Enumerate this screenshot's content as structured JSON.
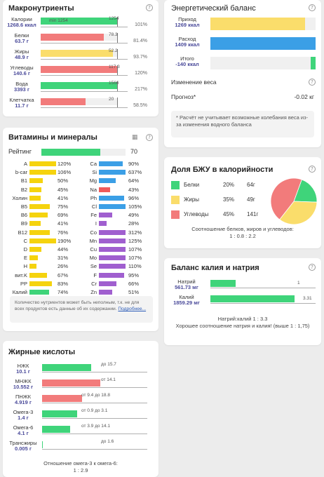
{
  "macro": {
    "title": "Макронутриенты",
    "rows": [
      {
        "name": "Калории",
        "value": "1268.6 ккал",
        "fill": 1.0,
        "color": "#3fd47a",
        "min": "min 1254",
        "tick": "1254",
        "pct": "101%"
      },
      {
        "name": "Белки",
        "value": "63.7 г",
        "fill": 0.815,
        "color": "#f27b7b",
        "tick": "78.3",
        "pct": "81.4%"
      },
      {
        "name": "Жиры",
        "value": "48.9 г",
        "fill": 0.937,
        "color": "#fadd6b",
        "tick": "52.2",
        "pct": "93.7%"
      },
      {
        "name": "Углеводы",
        "value": "140.6 г",
        "fill": 1.0,
        "color": "#f27b7b",
        "tick": "117.3",
        "pct": "120%"
      },
      {
        "name": "Вода",
        "value": "3393 г",
        "fill": 1.0,
        "color": "#3fd47a",
        "tick": "1566",
        "pct": "217%"
      },
      {
        "name": "Клетчатка",
        "value": "11.7 г",
        "fill": 0.585,
        "color": "#f27b7b",
        "tick": "20",
        "pct": "58.5%"
      }
    ]
  },
  "vitamins": {
    "title": "Витамины и минералы",
    "rating_label": "Рейтинг",
    "rating_value": "70",
    "rating_fill": 0.7,
    "left": [
      {
        "n": "A",
        "v": "120%",
        "f": 1.0,
        "c": "#f5d30e"
      },
      {
        "n": "b-car",
        "v": "106%",
        "f": 1.0,
        "c": "#f5d30e"
      },
      {
        "n": "B1",
        "v": "50%",
        "f": 0.5,
        "c": "#f5d30e"
      },
      {
        "n": "B2",
        "v": "45%",
        "f": 0.45,
        "c": "#f5d30e"
      },
      {
        "n": "Холин",
        "v": "41%",
        "f": 0.41,
        "c": "#f5d30e"
      },
      {
        "n": "B5",
        "v": "75%",
        "f": 0.75,
        "c": "#f5d30e"
      },
      {
        "n": "B6",
        "v": "69%",
        "f": 0.69,
        "c": "#f5d30e"
      },
      {
        "n": "B9",
        "v": "41%",
        "f": 0.41,
        "c": "#f5d30e"
      },
      {
        "n": "B12",
        "v": "76%",
        "f": 0.76,
        "c": "#f5d30e"
      },
      {
        "n": "C",
        "v": "190%",
        "f": 1.0,
        "c": "#f5d30e"
      },
      {
        "n": "D",
        "v": "44%",
        "f": 0.44,
        "c": "#f5d30e"
      },
      {
        "n": "E",
        "v": "31%",
        "f": 0.31,
        "c": "#f5d30e"
      },
      {
        "n": "H",
        "v": "26%",
        "f": 0.26,
        "c": "#f5d30e"
      },
      {
        "n": "вит.K",
        "v": "67%",
        "f": 0.67,
        "c": "#f5d30e"
      },
      {
        "n": "PP",
        "v": "83%",
        "f": 0.83,
        "c": "#f5d30e"
      },
      {
        "n": "Калий",
        "v": "74%",
        "f": 0.74,
        "c": "#3fd47a"
      }
    ],
    "right": [
      {
        "n": "Ca",
        "v": "90%",
        "f": 0.9,
        "c": "#3b9fe6"
      },
      {
        "n": "Si",
        "v": "637%",
        "f": 1.0,
        "c": "#3b9fe6"
      },
      {
        "n": "Mg",
        "v": "64%",
        "f": 0.64,
        "c": "#3b9fe6"
      },
      {
        "n": "Na",
        "v": "43%",
        "f": 0.43,
        "c": "#f05a5a"
      },
      {
        "n": "Ph",
        "v": "96%",
        "f": 0.96,
        "c": "#3b9fe6"
      },
      {
        "n": "Cl",
        "v": "105%",
        "f": 1.0,
        "c": "#3b9fe6"
      },
      {
        "n": "Fe",
        "v": "49%",
        "f": 0.49,
        "c": "#a05fcf"
      },
      {
        "n": "I",
        "v": "28%",
        "f": 0.28,
        "c": "#a05fcf"
      },
      {
        "n": "Co",
        "v": "312%",
        "f": 1.0,
        "c": "#a05fcf"
      },
      {
        "n": "Mn",
        "v": "125%",
        "f": 1.0,
        "c": "#a05fcf"
      },
      {
        "n": "Cu",
        "v": "107%",
        "f": 1.0,
        "c": "#a05fcf"
      },
      {
        "n": "Mo",
        "v": "107%",
        "f": 1.0,
        "c": "#a05fcf"
      },
      {
        "n": "Se",
        "v": "110%",
        "f": 1.0,
        "c": "#a05fcf"
      },
      {
        "n": "F",
        "v": "95%",
        "f": 0.95,
        "c": "#a05fcf"
      },
      {
        "n": "Cr",
        "v": "66%",
        "f": 0.66,
        "c": "#a05fcf"
      },
      {
        "n": "Zn",
        "v": "51%",
        "f": 0.51,
        "c": "#a05fcf"
      }
    ],
    "note": "Количество нутриентов может быть неполным, т.к. не для всех продуктов есть данные об их содержании.",
    "note_link": "Подробнее..."
  },
  "fatty": {
    "title": "Жирные кислоты",
    "rows": [
      {
        "name": "НЖК",
        "value": "10.1 г",
        "fill": 0.64,
        "color": "#3fd47a",
        "tick": "до 15.7",
        "tickpos": 1.0
      },
      {
        "name": "МНЖК",
        "value": "10.552 г",
        "fill": 0.75,
        "color": "#f27b7b",
        "tick": "от 14.1",
        "tickpos": 1.0
      },
      {
        "name": "ПНЖК",
        "value": "4.919 г",
        "fill": 0.52,
        "color": "#f27b7b",
        "tick": "от 9.4  до 18.8",
        "tickpos": 1.0
      },
      {
        "name": "Омега-3",
        "value": "1.4 г",
        "fill": 0.45,
        "color": "#3fd47a",
        "tick": "от 0.9  до 3.1",
        "tickpos": 1.0
      },
      {
        "name": "Омега-6",
        "value": "4.1 г",
        "fill": 0.36,
        "color": "#3fd47a",
        "tick": "от 3.9  до 14.1",
        "tickpos": 1.0
      },
      {
        "name": "Трансжиры",
        "value": "0.005 г",
        "fill": 0.01,
        "color": "#3fd47a",
        "tick": "до 1.6",
        "tickpos": 1.0
      }
    ],
    "ratio_label": "Отношение омега-3 к омега-6:",
    "ratio_value": "1 : 2.9"
  },
  "energy": {
    "title": "Энергетический баланс",
    "rows": [
      {
        "name": "Приход",
        "value": "1269 ккал",
        "fill": 0.9,
        "color": "#fadd6b"
      },
      {
        "name": "Расход",
        "value": "1409 ккал",
        "fill": 1.0,
        "color": "#3b9fe6"
      },
      {
        "name": "Итого",
        "value": "-140 ккал",
        "fill": 0.05,
        "color": "#3fd47a"
      }
    ],
    "weight_change_label": "Изменение веса",
    "forecast_label": "Прогноз*",
    "forecast_value": "-0.02 кг",
    "note": "* Расчёт не учитывает возможные колебания веса из-за изменения водного баланса"
  },
  "bju": {
    "title": "Доля БЖУ в калорийности",
    "items": [
      {
        "name": "Белки",
        "pct": "20%",
        "grams": "64г",
        "color": "#3fd47a",
        "share": 20
      },
      {
        "name": "Жиры",
        "pct": "35%",
        "grams": "49г",
        "color": "#fadd6b",
        "share": 35
      },
      {
        "name": "Углеводы",
        "pct": "45%",
        "grams": "141г",
        "color": "#f27b7b",
        "share": 45
      }
    ],
    "ratio_label": "Соотношение белков, жиров и углеводов:",
    "ratio_value": "1 : 0.8 : 2.2"
  },
  "kna": {
    "title": "Баланс калия и натрия",
    "rows": [
      {
        "name": "Натрий",
        "value": "561.73 мг",
        "fill": 0.3,
        "color": "#3fd47a",
        "tick": "1"
      },
      {
        "name": "Калий",
        "value": "1859.29 мг",
        "fill": 1.0,
        "color": "#3fd47a",
        "tick": "3.31"
      }
    ],
    "ratio_line": "Натрий:калий 1 : 3.3",
    "good_line": "Хорошее соотношение натрия и калия! (выше 1 : 1,75)"
  },
  "icons": {
    "help": "?",
    "table": "▦"
  }
}
